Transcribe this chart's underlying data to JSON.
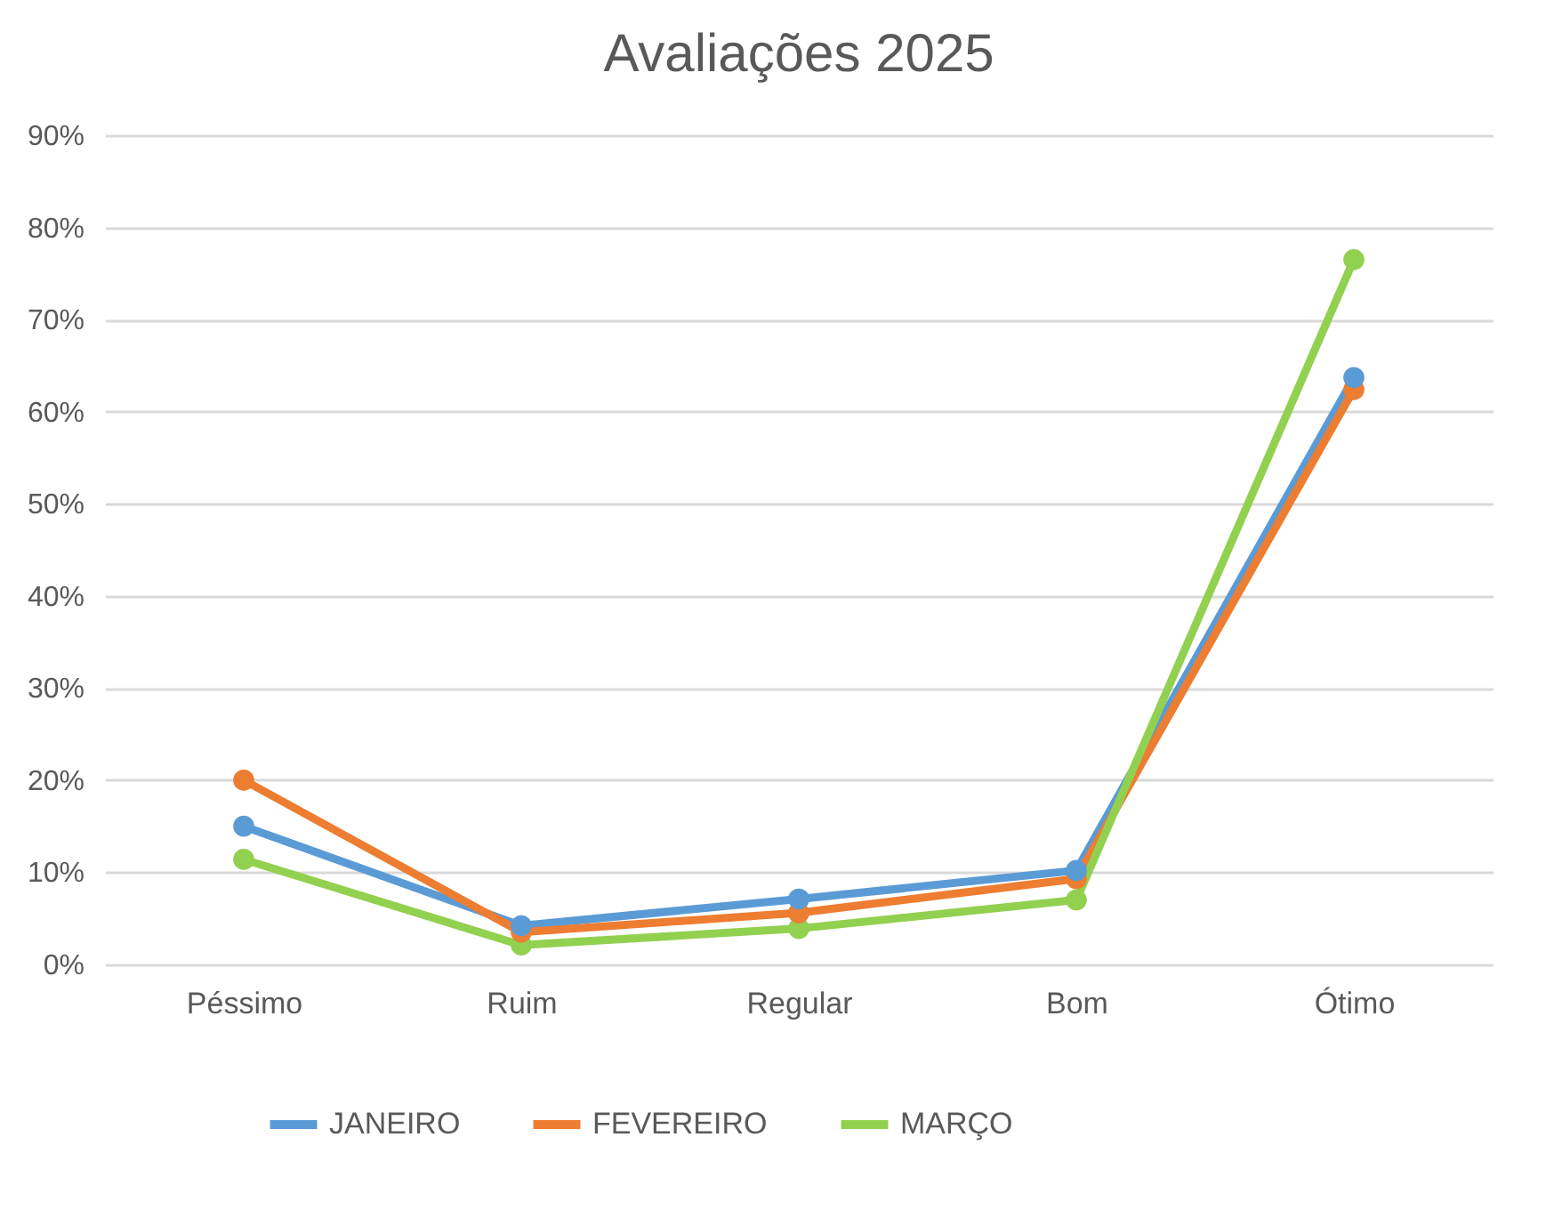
{
  "chart_data": {
    "type": "line",
    "title": "Avaliações 2025",
    "categories": [
      "Péssimo",
      "Ruim",
      "Regular",
      "Bom",
      "Ótimo"
    ],
    "series": [
      {
        "name": "JANEIRO",
        "color": "#5b9bd5",
        "values": [
          15,
          4.2,
          7.1,
          10.2,
          63.7
        ]
      },
      {
        "name": "FEVEREIRO",
        "color": "#ed7d31",
        "values": [
          20,
          3.5,
          5.6,
          9.3,
          62.4
        ]
      },
      {
        "name": "MARÇO",
        "color": "#92d050",
        "values": [
          11.4,
          2.1,
          3.9,
          7,
          76.5
        ]
      }
    ],
    "ylim": [
      0,
      90
    ],
    "yticks": [
      {
        "value": 0,
        "label": "0%"
      },
      {
        "value": 10,
        "label": "10%"
      },
      {
        "value": 20,
        "label": "20%"
      },
      {
        "value": 30,
        "label": "30%"
      },
      {
        "value": 40,
        "label": "40%"
      },
      {
        "value": 50,
        "label": "50%"
      },
      {
        "value": 60,
        "label": "60%"
      },
      {
        "value": 70,
        "label": "70%"
      },
      {
        "value": 80,
        "label": "80%"
      },
      {
        "value": 90,
        "label": "90%"
      }
    ],
    "grid": "y",
    "legend": "bottom",
    "marker": "circle",
    "line_style": "solid"
  }
}
